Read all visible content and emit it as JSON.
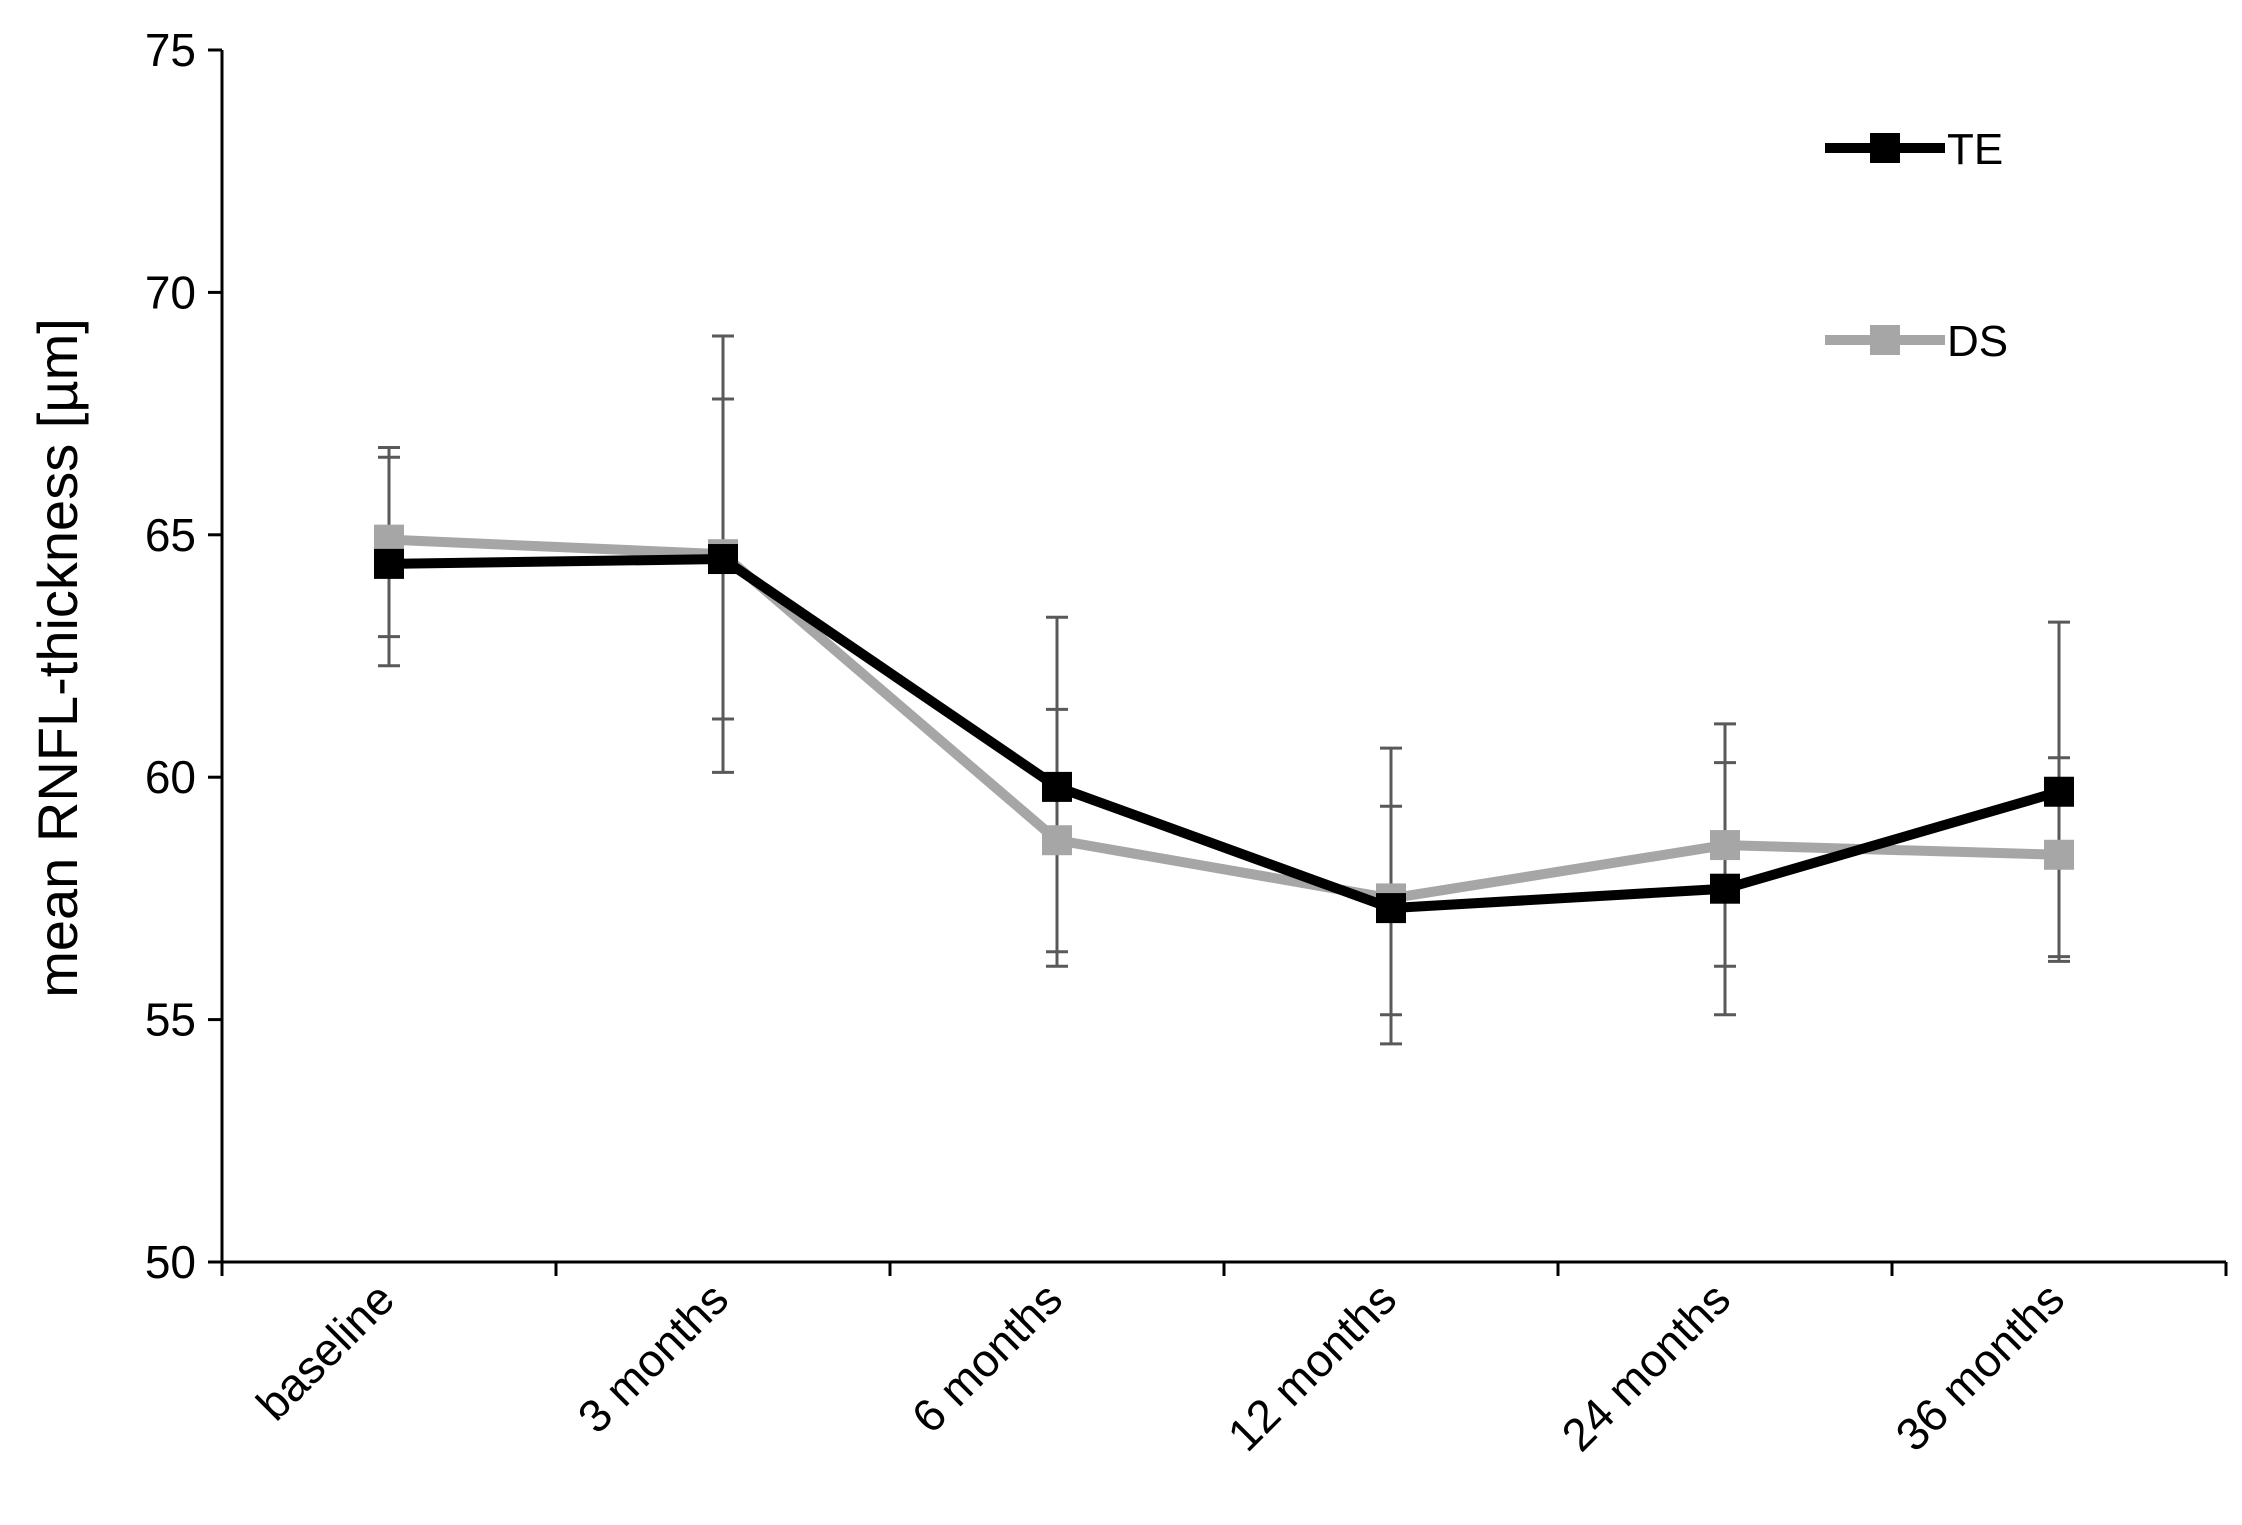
{
  "chart_data": {
    "type": "line",
    "title": "",
    "xlabel": "",
    "ylabel": "mean RNFL-thickness [µm]",
    "ylim": [
      50,
      75
    ],
    "yticks": [
      50,
      55,
      60,
      65,
      70,
      75
    ],
    "ytick_labels": [
      "50",
      "55",
      "60",
      "65",
      "70",
      "75"
    ],
    "categories": [
      "baseline",
      "3 months",
      "6 months",
      "12 months",
      "24 months",
      "36 months"
    ],
    "grid": false,
    "legend": "top-right",
    "series": [
      {
        "name": "TE",
        "color": "#000000",
        "values": [
          64.4,
          64.5,
          59.8,
          57.3,
          57.7,
          59.7
        ],
        "err_low": [
          62.3,
          61.2,
          56.1,
          55.1,
          56.1,
          56.2
        ],
        "err_high": [
          66.6,
          67.8,
          61.4,
          59.4,
          60.3,
          60.4
        ]
      },
      {
        "name": "DS",
        "color": "#a6a6a6",
        "values": [
          64.9,
          64.6,
          58.7,
          57.5,
          58.6,
          58.4
        ],
        "err_low": [
          62.9,
          60.1,
          56.4,
          54.5,
          55.1,
          56.3
        ],
        "err_high": [
          66.8,
          69.1,
          63.3,
          60.6,
          61.1,
          63.2
        ]
      }
    ]
  }
}
